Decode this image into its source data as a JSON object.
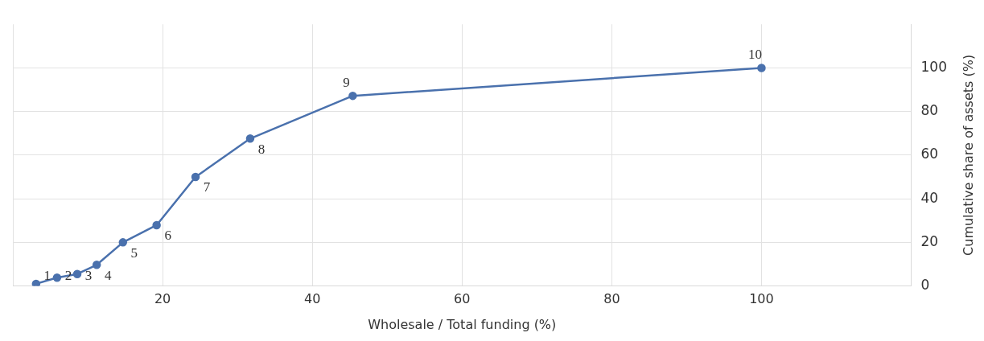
{
  "chart_data": {
    "type": "line",
    "xlabel": "Wholesale / Total funding (%)",
    "ylabel": "Cumulative share of assets (%)",
    "x": [
      3.1,
      5.9,
      8.6,
      11.2,
      14.7,
      19.2,
      24.4,
      31.7,
      45.4,
      100
    ],
    "series": [
      {
        "color": "#4a71ad",
        "values": [
          1.0,
          3.8,
          5.5,
          9.7,
          20.0,
          27.9,
          50.0,
          67.6,
          87.2,
          100
        ]
      }
    ],
    "xlim": [
      0,
      120
    ],
    "xticks": [
      {
        "value": 0,
        "label": null
      },
      20,
      40,
      60,
      80,
      100
    ],
    "ylim": [
      0,
      120
    ],
    "yticks": [
      0,
      20,
      40,
      60,
      80,
      100
    ],
    "grid": true,
    "legend": false,
    "marker": "circle",
    "line_style": "solid",
    "annotations": [
      {
        "text": "1",
        "x": 3.1,
        "y": 1.0
      },
      {
        "text": "2",
        "x": 5.9,
        "y": 3.8
      },
      {
        "text": "3",
        "x": 8.6,
        "y": 5.5
      },
      {
        "text": "4",
        "x": 11.2,
        "y": 9.7
      },
      {
        "text": "5",
        "x": 14.7,
        "y": 20.0
      },
      {
        "text": "6",
        "x": 19.2,
        "y": 27.9
      },
      {
        "text": "7",
        "x": 24.4,
        "y": 50.0
      },
      {
        "text": "8",
        "x": 31.7,
        "y": 67.6
      },
      {
        "text": "9",
        "x": 45.4,
        "y": 87.2
      },
      {
        "text": "10",
        "x": 100,
        "y": 100
      }
    ]
  }
}
